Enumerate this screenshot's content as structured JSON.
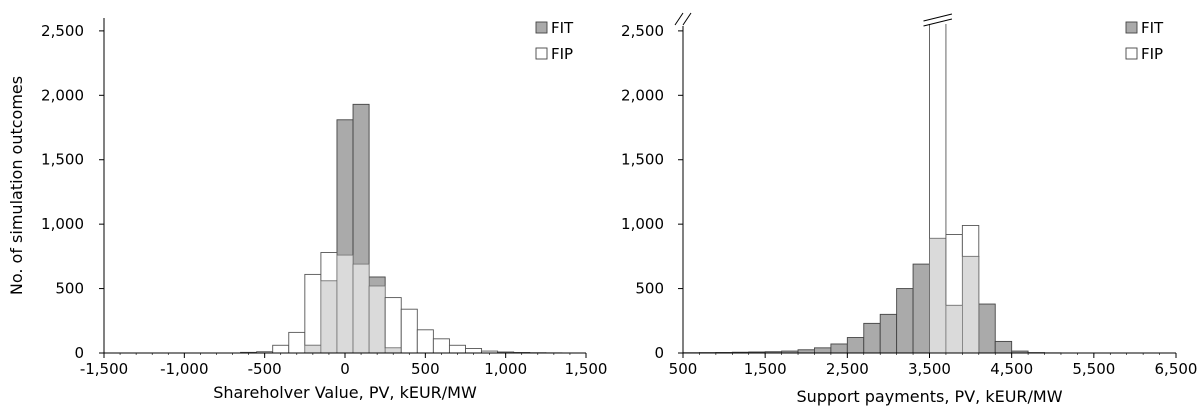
{
  "chart_data": [
    {
      "type": "bar",
      "xlabel": "Shareholver Value, PV, kEUR/MW",
      "ylabel": "No. of simulation outcomes",
      "xlim": [
        -1500,
        1500
      ],
      "ylim": [
        0,
        2600
      ],
      "xticks": [
        "-1,500",
        "-1,000",
        "-500",
        "0",
        "500",
        "1,000",
        "1,500"
      ],
      "xtick_values": [
        -1500,
        -1000,
        -500,
        0,
        500,
        1000,
        1500
      ],
      "yticks": [
        "0",
        "500",
        "1,000",
        "1,500",
        "2,000",
        "2,500"
      ],
      "ytick_values": [
        0,
        500,
        1000,
        1500,
        2000,
        2500
      ],
      "bin_width": 100,
      "x": [
        -1400,
        -1300,
        -1200,
        -1100,
        -1000,
        -900,
        -800,
        -700,
        -600,
        -500,
        -400,
        -300,
        -200,
        -100,
        0,
        100,
        200,
        300,
        400,
        500,
        600,
        700,
        800,
        900,
        1000,
        1100,
        1200,
        1300,
        1400
      ],
      "series": [
        {
          "name": "FIT",
          "values": [
            0,
            0,
            0,
            0,
            0,
            0,
            0,
            0,
            0,
            0,
            0,
            0,
            60,
            560,
            1810,
            1930,
            590,
            40,
            0,
            0,
            0,
            0,
            0,
            0,
            0,
            0,
            0,
            0,
            0
          ]
        },
        {
          "name": "FIP",
          "values": [
            0,
            0,
            0,
            0,
            0,
            0,
            0,
            0,
            5,
            10,
            60,
            160,
            610,
            780,
            760,
            690,
            520,
            430,
            340,
            180,
            110,
            60,
            35,
            15,
            8,
            4,
            2,
            1,
            0
          ]
        }
      ],
      "colors": {
        "FIT": "#aaaaaa",
        "FIP": "#ffffff",
        "overlap": "#dadada"
      },
      "legend": "top-right"
    },
    {
      "type": "bar",
      "xlabel": "Support payments, PV, kEUR/MW",
      "ylabel": "",
      "xlim": [
        500,
        6500
      ],
      "ylim": [
        0,
        2600
      ],
      "xticks": [
        "500",
        "1,500",
        "2,500",
        "3,500",
        "4,500",
        "5,500",
        "6,500"
      ],
      "xtick_values": [
        500,
        1500,
        2500,
        3500,
        4500,
        5500,
        6500
      ],
      "yticks": [
        "0",
        "500",
        "1,000",
        "1,500",
        "2,000",
        "2,500"
      ],
      "ytick_values": [
        0,
        500,
        1000,
        1500,
        2000,
        2500
      ],
      "bin_width": 200,
      "axis_break": true,
      "x": [
        600,
        800,
        1000,
        1200,
        1400,
        1600,
        1800,
        2000,
        2200,
        2400,
        2600,
        2800,
        3000,
        3200,
        3400,
        3600,
        3800,
        4000,
        4200,
        4400,
        4600,
        4800,
        5000,
        5200,
        5400,
        5600,
        5800,
        6000,
        6200,
        6400
      ],
      "series": [
        {
          "name": "FIT",
          "values": [
            2,
            3,
            4,
            6,
            8,
            10,
            15,
            25,
            40,
            70,
            120,
            230,
            300,
            500,
            690,
            890,
            370,
            750,
            380,
            90,
            15,
            3,
            1,
            0,
            0,
            0,
            0,
            0,
            0,
            0
          ]
        },
        {
          "name": "FIP",
          "values": [
            0,
            0,
            0,
            0,
            0,
            0,
            0,
            0,
            0,
            0,
            0,
            0,
            0,
            0,
            0,
            2600,
            920,
            990,
            0,
            0,
            0,
            0,
            0,
            0,
            0,
            0,
            0,
            0,
            0,
            0
          ]
        }
      ],
      "colors": {
        "FIT": "#aaaaaa",
        "FIP": "#ffffff",
        "overlap": "#dadada"
      },
      "legend": "top-right"
    }
  ]
}
